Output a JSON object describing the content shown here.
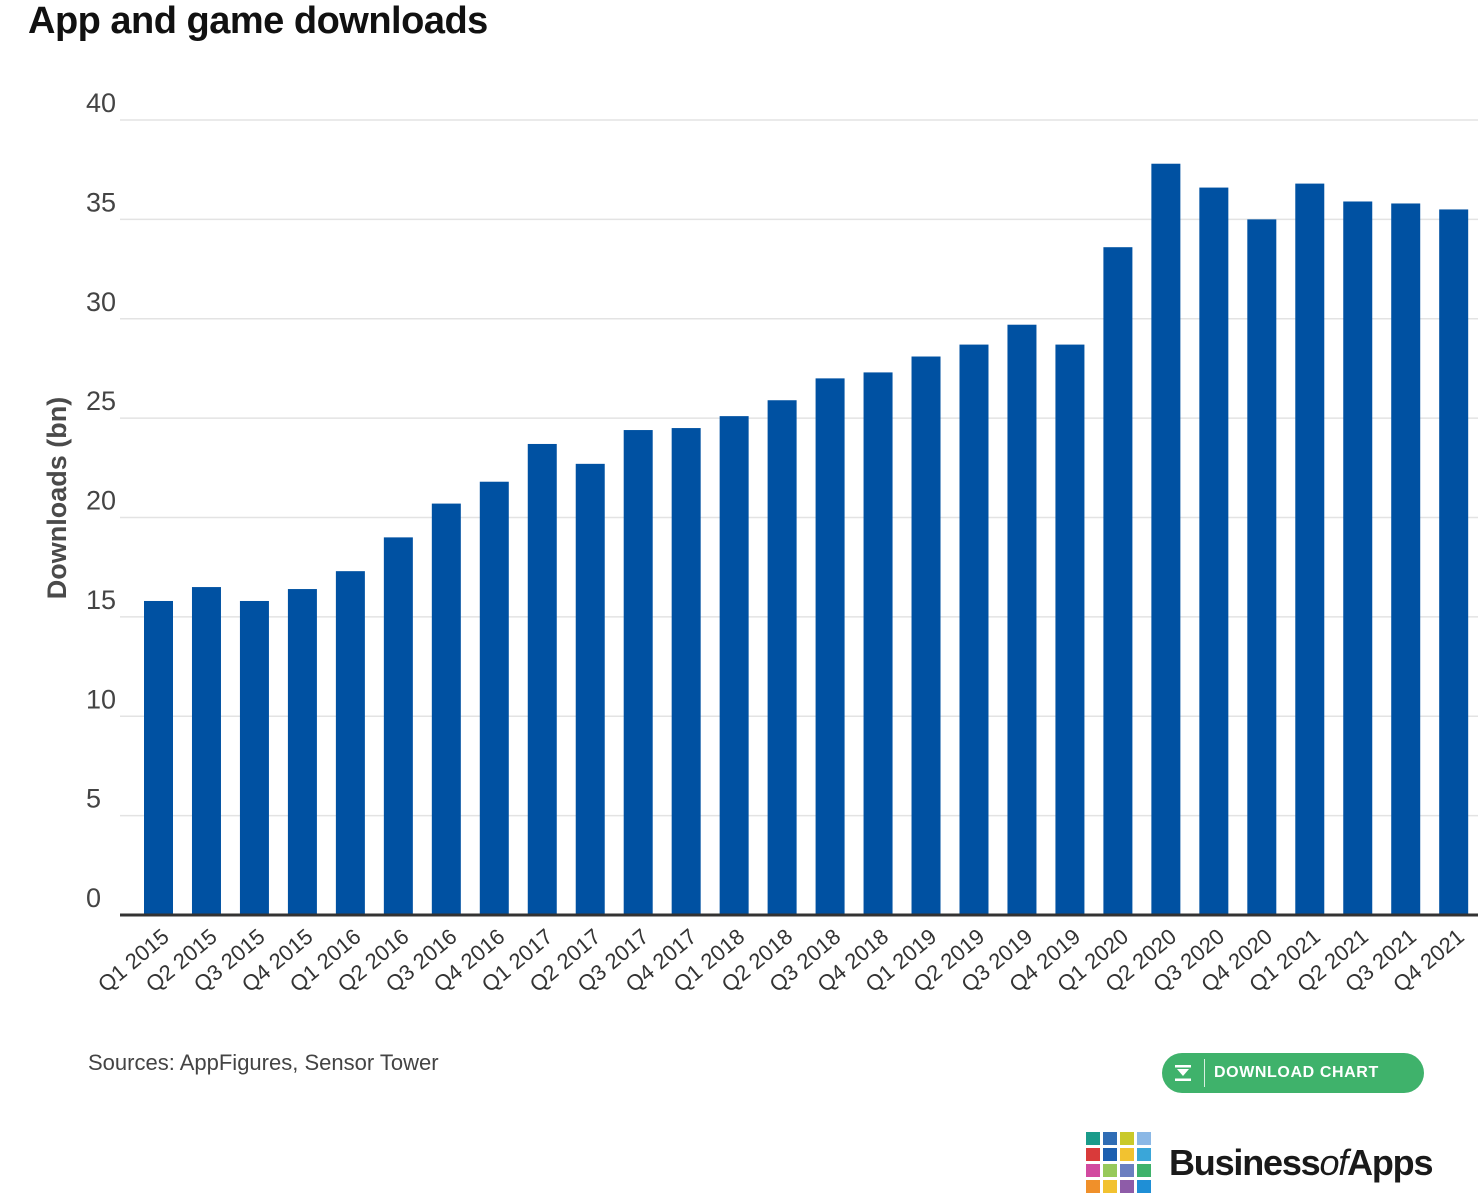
{
  "chart_data": {
    "type": "bar",
    "title": "App and game downloads",
    "xlabel": "",
    "ylabel": "Downloads (bn)",
    "ylim": [
      0,
      40
    ],
    "yticks": [
      0,
      5,
      10,
      15,
      20,
      25,
      30,
      35,
      40
    ],
    "grid": true,
    "bar_color": "#0051a2",
    "categories": [
      "Q1 2015",
      "Q2 2015",
      "Q3 2015",
      "Q4 2015",
      "Q1 2016",
      "Q2 2016",
      "Q3 2016",
      "Q4 2016",
      "Q1 2017",
      "Q2 2017",
      "Q3 2017",
      "Q4 2017",
      "Q1 2018",
      "Q2 2018",
      "Q3 2018",
      "Q4 2018",
      "Q1 2019",
      "Q2 2019",
      "Q3 2019",
      "Q4 2019",
      "Q1 2020",
      "Q2 2020",
      "Q3 2020",
      "Q4 2020",
      "Q1 2021",
      "Q2 2021",
      "Q3 2021",
      "Q4 2021"
    ],
    "values": [
      15.8,
      16.5,
      15.8,
      16.4,
      17.3,
      19.0,
      20.7,
      21.8,
      23.7,
      22.7,
      24.4,
      24.5,
      25.1,
      25.9,
      27.0,
      27.3,
      28.1,
      28.7,
      29.7,
      28.7,
      33.6,
      37.8,
      36.6,
      35.0,
      36.8,
      35.9,
      35.8,
      35.5
    ]
  },
  "source": "Sources: AppFigures, Sensor Tower",
  "download_button": {
    "label": "DOWNLOAD CHART",
    "icon": "download-icon",
    "color": "#3fb26b"
  },
  "logo": {
    "text_before": "Business",
    "text_of": "of",
    "text_after": "Apps",
    "colors": [
      "#1a9b8a",
      "#2f6db5",
      "#c9c92a",
      "#8bb8e6",
      "#d93a3a",
      "#1c5fb0",
      "#f2c230",
      "#3aa6d9",
      "#d24aa0",
      "#97c95a",
      "#6b7fc0",
      "#3fb26b",
      "#f0902a",
      "#f2c230",
      "#8e5ca8",
      "#1f8fd6"
    ]
  }
}
